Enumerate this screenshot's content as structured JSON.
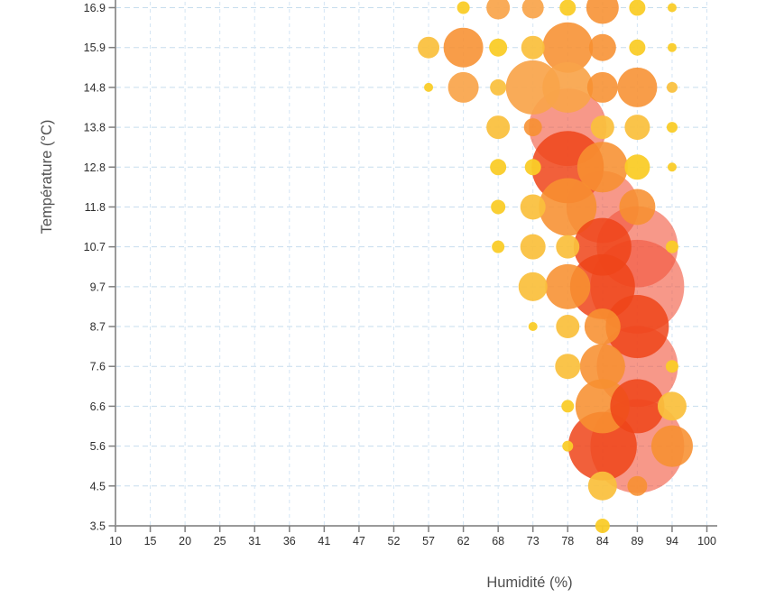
{
  "chart_data": {
    "type": "scatter",
    "subtype": "bubble",
    "title": "",
    "xlabel": "Humidité (%)",
    "ylabel": "Température (°C)",
    "x_ticks": [
      10,
      15,
      20,
      25,
      31,
      36,
      41,
      47,
      52,
      57,
      62,
      68,
      73,
      78,
      84,
      89,
      94,
      100
    ],
    "y_ticks": [
      3.5,
      4.5,
      5.6,
      6.6,
      7.6,
      8.7,
      9.7,
      10.7,
      11.8,
      12.8,
      13.8,
      14.8,
      15.9,
      16.9
    ],
    "xlim": [
      10,
      100
    ],
    "ylim": [
      3.5,
      16.9
    ],
    "grid": true,
    "legend": false,
    "point_fields": [
      "humidity_pct",
      "temperature_c",
      "radius_px",
      "color_class"
    ],
    "points": [
      [
        57,
        15.9,
        12,
        "amber"
      ],
      [
        57,
        14.8,
        5,
        "yellow"
      ],
      [
        62,
        16.9,
        7,
        "yellow"
      ],
      [
        62,
        15.9,
        22,
        "orange"
      ],
      [
        62,
        14.8,
        17,
        "sandy"
      ],
      [
        68,
        16.9,
        13,
        "sandy"
      ],
      [
        68,
        15.9,
        10,
        "yellow"
      ],
      [
        68,
        14.8,
        9,
        "amber"
      ],
      [
        68,
        13.8,
        13,
        "amber"
      ],
      [
        68,
        12.8,
        9,
        "yellow"
      ],
      [
        68,
        11.8,
        8,
        "yellow"
      ],
      [
        68,
        10.7,
        7,
        "yellow"
      ],
      [
        73,
        16.9,
        12,
        "sandy"
      ],
      [
        73,
        15.9,
        13,
        "amber"
      ],
      [
        73,
        14.8,
        30,
        "sandy"
      ],
      [
        73,
        13.8,
        10,
        "orange"
      ],
      [
        73,
        12.8,
        9,
        "yellow"
      ],
      [
        73,
        11.8,
        14,
        "amber"
      ],
      [
        73,
        10.7,
        14,
        "amber"
      ],
      [
        73,
        9.7,
        16,
        "amber"
      ],
      [
        73,
        8.7,
        5,
        "yellow"
      ],
      [
        78,
        16.9,
        9,
        "yellow"
      ],
      [
        78,
        15.9,
        28,
        "orange"
      ],
      [
        78,
        14.8,
        28,
        "sandy"
      ],
      [
        78,
        13.8,
        43,
        "salmon"
      ],
      [
        78,
        12.8,
        40,
        "red"
      ],
      [
        78,
        11.8,
        32,
        "orange"
      ],
      [
        78,
        10.7,
        13,
        "amber"
      ],
      [
        78,
        9.7,
        25,
        "orange"
      ],
      [
        78,
        8.7,
        13,
        "amber"
      ],
      [
        78,
        7.6,
        14,
        "amber"
      ],
      [
        78,
        6.6,
        7,
        "yellow"
      ],
      [
        78,
        5.6,
        6,
        "yellow"
      ],
      [
        84,
        16.9,
        18,
        "orange"
      ],
      [
        84,
        15.9,
        15,
        "orange"
      ],
      [
        84,
        14.8,
        17,
        "orange"
      ],
      [
        84,
        13.8,
        13,
        "amber"
      ],
      [
        84,
        12.8,
        28,
        "orange"
      ],
      [
        84,
        11.8,
        40,
        "salmon"
      ],
      [
        84,
        10.7,
        32,
        "red"
      ],
      [
        84,
        9.7,
        36,
        "red"
      ],
      [
        84,
        8.7,
        20,
        "orange"
      ],
      [
        84,
        7.6,
        25,
        "orange"
      ],
      [
        84,
        6.6,
        30,
        "orange"
      ],
      [
        84,
        5.6,
        38,
        "red"
      ],
      [
        84,
        4.5,
        16,
        "amber"
      ],
      [
        84,
        3.5,
        8,
        "yellow"
      ],
      [
        89,
        16.9,
        9,
        "yellow"
      ],
      [
        89,
        15.9,
        9,
        "yellow"
      ],
      [
        89,
        14.8,
        22,
        "orange"
      ],
      [
        89,
        13.8,
        14,
        "amber"
      ],
      [
        89,
        12.8,
        14,
        "yellow"
      ],
      [
        89,
        11.8,
        20,
        "orange"
      ],
      [
        89,
        10.7,
        45,
        "salmon"
      ],
      [
        89,
        9.7,
        52,
        "salmon"
      ],
      [
        89,
        8.7,
        35,
        "red"
      ],
      [
        89,
        7.6,
        45,
        "salmon"
      ],
      [
        89,
        6.6,
        30,
        "red"
      ],
      [
        89,
        5.6,
        52,
        "salmon"
      ],
      [
        89,
        4.5,
        11,
        "orange"
      ],
      [
        94,
        16.9,
        5,
        "yellow"
      ],
      [
        94,
        15.9,
        5,
        "yellow"
      ],
      [
        94,
        14.8,
        6,
        "amber"
      ],
      [
        94,
        13.8,
        6,
        "yellow"
      ],
      [
        94,
        12.8,
        5,
        "yellow"
      ],
      [
        94,
        10.7,
        7,
        "yellow"
      ],
      [
        94,
        7.6,
        7,
        "yellow"
      ],
      [
        94,
        6.6,
        16,
        "amber"
      ],
      [
        94,
        5.6,
        23,
        "orange"
      ]
    ],
    "palette": {
      "yellow": "rgba(250,204,40,0.95)",
      "amber": "rgba(250,191,60,0.93)",
      "sandy": "rgba(248,164,74,0.92)",
      "orange": "rgba(247,143,48,0.88)",
      "red": "rgba(238,68,25,0.85)",
      "salmon": "rgba(242,83,58,0.6)"
    }
  },
  "colors": {
    "background": "#ffffff",
    "axis": "#9a9a9a",
    "tick": "#7f7f7f",
    "grid_horizontal": "#c7ddee",
    "grid_vertical": "#d4e5f4",
    "tick_label": "#2e2e2e",
    "axis_title": "#4f4f4f"
  }
}
